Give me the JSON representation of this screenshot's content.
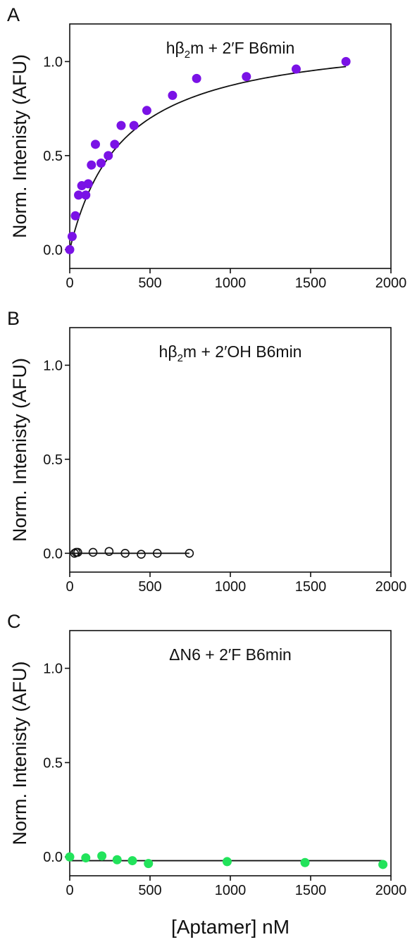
{
  "chart_data": [
    {
      "type": "scatter",
      "panel": "A",
      "annotation": "hβ₂m + 2′F B6min",
      "ylabel": "Norm. Intenisty (AFU)",
      "xlim": [
        0,
        2000
      ],
      "ylim": [
        -0.1,
        1.2
      ],
      "xticks": [
        0,
        500,
        1000,
        1500,
        2000
      ],
      "yticks": [
        0.0,
        0.5,
        1.0
      ],
      "ytick_labels": [
        "0.0",
        "0.5",
        "1.0"
      ],
      "marker": "filled",
      "color": "#7a12e6",
      "x": [
        0,
        15,
        35,
        55,
        75,
        100,
        115,
        135,
        160,
        195,
        240,
        280,
        320,
        400,
        480,
        640,
        790,
        1100,
        1410,
        1720
      ],
      "y": [
        0.0,
        0.07,
        0.18,
        0.29,
        0.34,
        0.29,
        0.35,
        0.45,
        0.56,
        0.46,
        0.5,
        0.56,
        0.66,
        0.66,
        0.74,
        0.82,
        0.91,
        0.92,
        0.96,
        1.0
      ],
      "fit": {
        "Bmax": 1.16,
        "Kd": 330,
        "x_range": [
          0,
          1720
        ]
      }
    },
    {
      "type": "scatter",
      "panel": "B",
      "annotation": "hβ₂m + 2′OH B6min",
      "ylabel": "Norm. Intenisty (AFU)",
      "xlim": [
        0,
        2000
      ],
      "ylim": [
        -0.1,
        1.2
      ],
      "xticks": [
        0,
        500,
        1000,
        1500,
        2000
      ],
      "yticks": [
        0.0,
        0.5,
        1.0
      ],
      "ytick_labels": [
        "0.0",
        "0.5",
        "1.0"
      ],
      "marker": "open",
      "color": "#111111",
      "x": [
        30,
        40,
        50,
        145,
        245,
        345,
        445,
        545,
        745
      ],
      "y": [
        0.0,
        0.005,
        0.005,
        0.005,
        0.01,
        0.0,
        -0.005,
        0.0,
        0.0
      ],
      "fit": {
        "line_y": 0.0,
        "x_range": [
          0,
          745
        ]
      }
    },
    {
      "type": "scatter",
      "panel": "C",
      "annotation": "ΔN6 + 2′F B6min",
      "ylabel": "Norm. Intenisty (AFU)",
      "xlabel": "[Aptamer] nM",
      "xlim": [
        0,
        2000
      ],
      "ylim": [
        -0.1,
        1.2
      ],
      "xticks": [
        0,
        500,
        1000,
        1500,
        2000
      ],
      "yticks": [
        0.0,
        0.5,
        1.0
      ],
      "ytick_labels": [
        "0.0",
        "0.5",
        "1.0"
      ],
      "marker": "filled",
      "color": "#22e35b",
      "x": [
        0,
        100,
        200,
        295,
        390,
        490,
        980,
        1465,
        1950
      ],
      "y": [
        0.0,
        -0.005,
        0.005,
        -0.015,
        -0.02,
        -0.035,
        -0.025,
        -0.03,
        -0.04
      ],
      "fit": {
        "line_y": -0.02,
        "x_range": [
          0,
          1950
        ]
      }
    }
  ]
}
